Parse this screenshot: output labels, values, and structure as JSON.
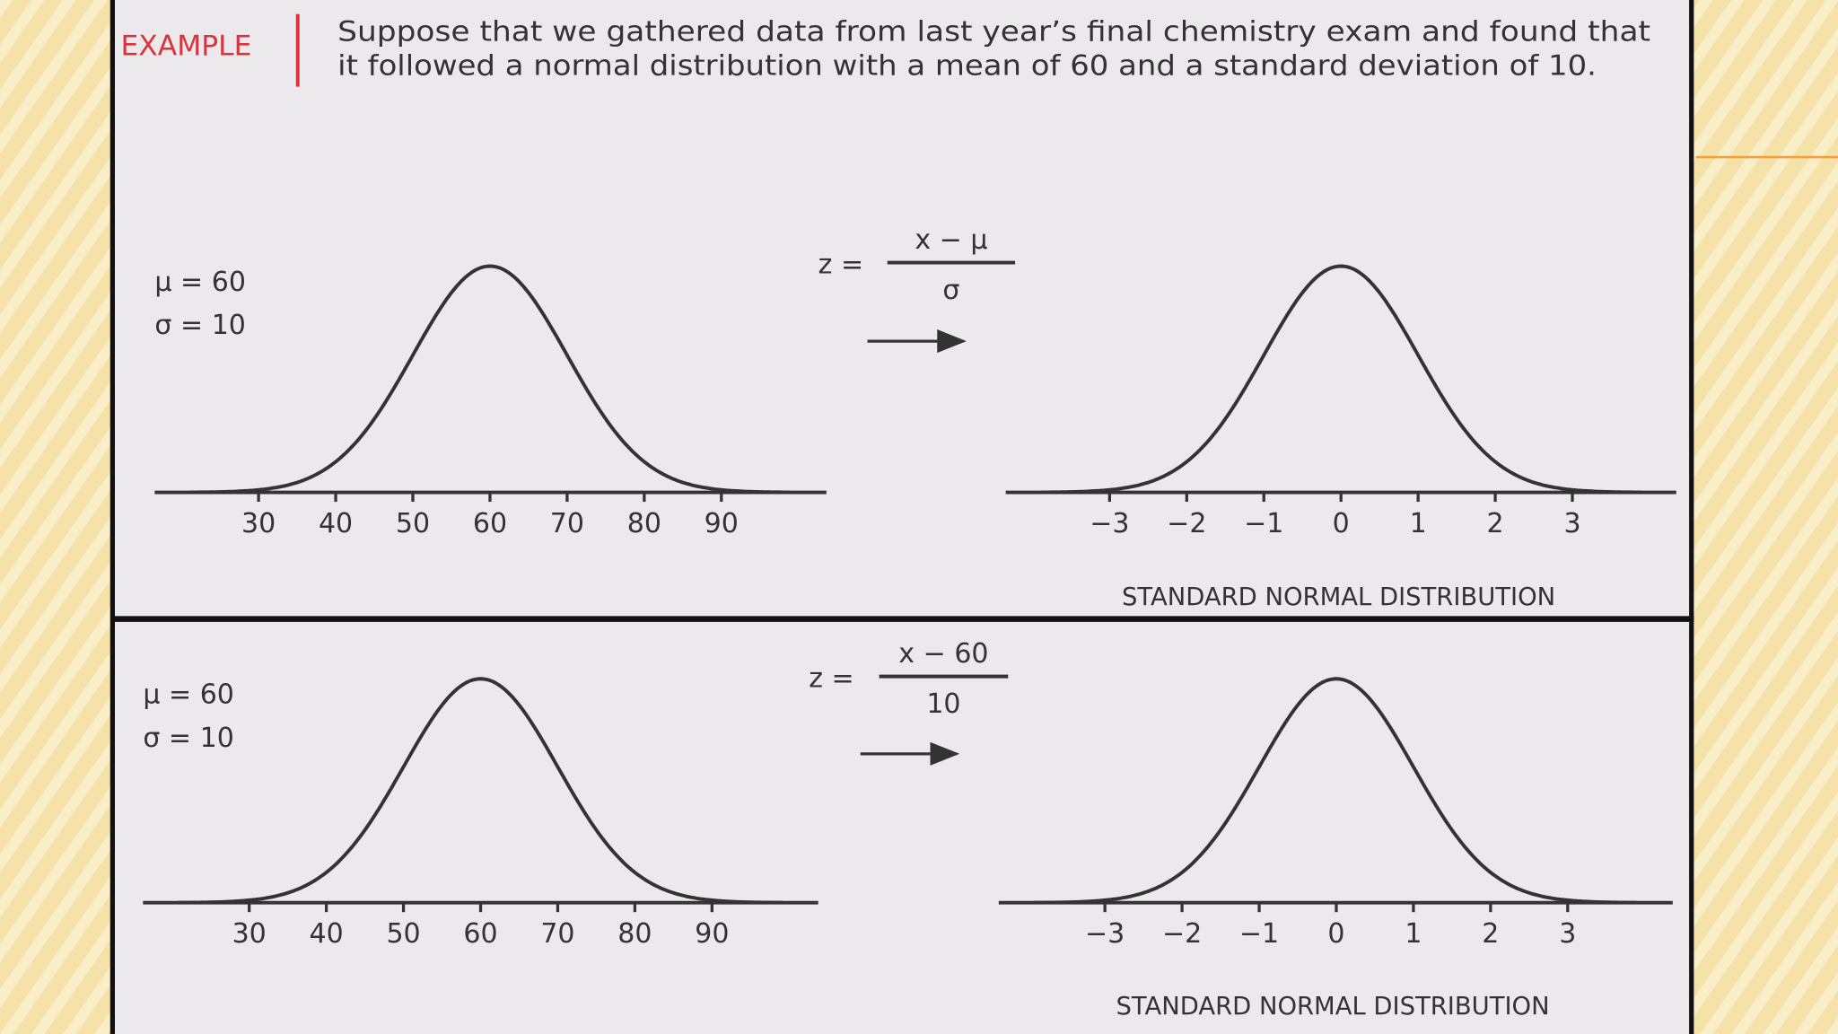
{
  "header": {
    "label": "EXAMPLE",
    "text_lines": [
      "Suppose that we gathered data from last year’s final chemistry exam and found that",
      "it followed a normal distribution with a mean of 60 and a standard deviation of 10."
    ]
  },
  "panels": [
    {
      "params": [
        "μ = 60",
        "σ = 10"
      ],
      "formula": {
        "lhs": "z =",
        "numerator": "x − μ",
        "denominator": "σ"
      },
      "x_ticks": [
        "30",
        "40",
        "50",
        "60",
        "70",
        "80",
        "90"
      ],
      "z_ticks": [
        "−3",
        "−2",
        "−1",
        "0",
        "1",
        "2",
        "3"
      ],
      "caption": "STANDARD NORMAL DISTRIBUTION"
    },
    {
      "params": [
        "μ = 60",
        "σ = 10"
      ],
      "formula": {
        "lhs": "z =",
        "numerator": "x − 60",
        "denominator": "10"
      },
      "x_ticks": [
        "30",
        "40",
        "50",
        "60",
        "70",
        "80",
        "90"
      ],
      "z_ticks": [
        "−3",
        "−2",
        "−1",
        "0",
        "1",
        "2",
        "3"
      ],
      "caption": "STANDARD NORMAL DISTRIBUTION"
    }
  ]
}
